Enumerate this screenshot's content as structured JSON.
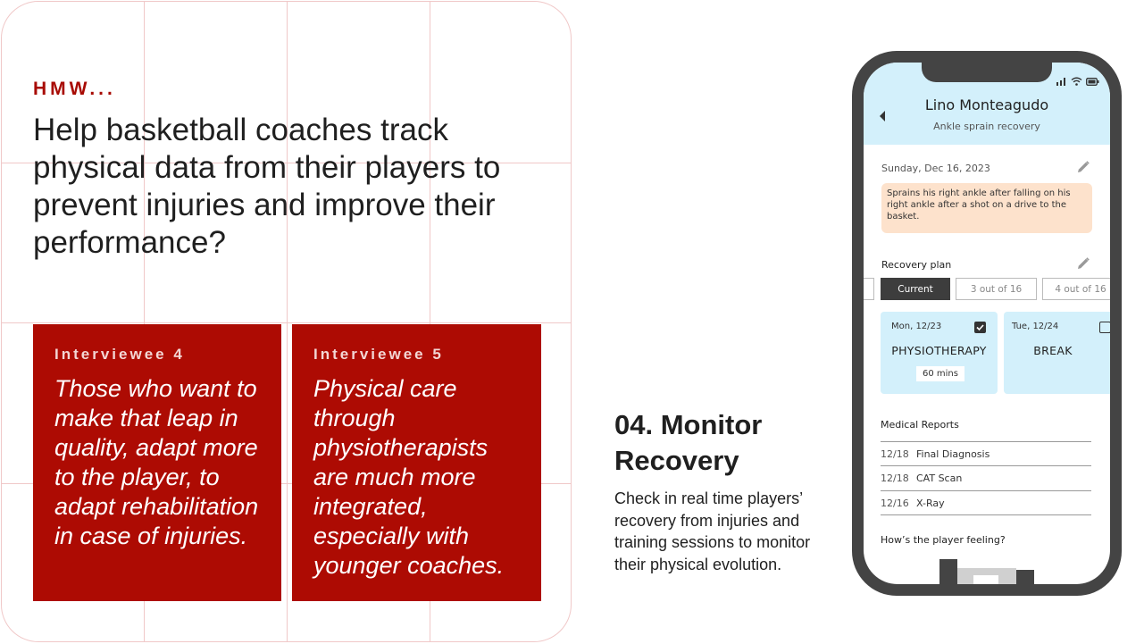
{
  "hmw": {
    "label": "HMW...",
    "question": "Help basketball coaches track physical data from their players to prevent injuries and improve their performance?"
  },
  "interviews": [
    {
      "who": "Interviewee 4",
      "quote": "Those who want to make that leap in quality, adapt more to the player, to adapt rehabilitation in case of injuries."
    },
    {
      "who": "Interviewee 5",
      "quote": "Physical care through physiotherapists are much more integrated, especially with younger coaches."
    }
  ],
  "section": {
    "title": "04. Monitor Recovery",
    "description": "Check in real time players’ recovery from injuries and training sessions to monitor their physical evolution."
  },
  "phone": {
    "player_name": "Lino Monteagudo",
    "player_subtitle": "Ankle sprain recovery",
    "date": "Sunday, Dec 16, 2023",
    "note": "Sprains his right ankle after falling on his right ankle after a shot on a drive to the basket.",
    "recovery_plan_label": "Recovery plan",
    "plan_tabs": [
      "Current",
      "3 out of 16",
      "4 out of 16"
    ],
    "days": [
      {
        "date": "Mon, 12/23",
        "type": "PHYSIOTHERAPY",
        "duration": "60 mins",
        "checked": true
      },
      {
        "date": "Tue, 12/24",
        "type": "BREAK",
        "duration": "",
        "checked": false
      }
    ],
    "reports_label": "Medical Reports",
    "reports": [
      {
        "date": "12/18",
        "name": "Final Diagnosis"
      },
      {
        "date": "12/18",
        "name": "CAT Scan"
      },
      {
        "date": "12/16",
        "name": "X-Ray"
      }
    ],
    "feeling_label": "How’s the player feeling?",
    "icons": [
      "back-arrow-icon",
      "pencil-icon",
      "checkbox-icon",
      "signal-icon",
      "wifi-icon",
      "battery-icon"
    ]
  },
  "colors": {
    "accent_red": "#ad0b03",
    "header_blue": "#d3f0fb",
    "note_peach": "#fde2cc",
    "phone_frame": "#444444"
  }
}
